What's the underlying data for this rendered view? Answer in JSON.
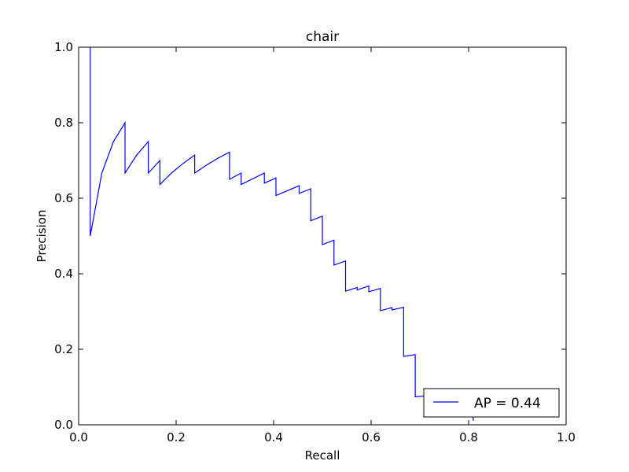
{
  "chart_data": {
    "type": "line",
    "title": "chair",
    "xlabel": "Recall",
    "ylabel": "Precision",
    "xlim": [
      0,
      1
    ],
    "ylim": [
      0,
      1
    ],
    "x_ticks": [
      0.0,
      0.2,
      0.4,
      0.6,
      0.8,
      1.0
    ],
    "y_ticks": [
      0.0,
      0.2,
      0.4,
      0.6,
      0.8,
      1.0
    ],
    "x_tick_labels": [
      "0.0",
      "0.2",
      "0.4",
      "0.6",
      "0.8",
      "1.0"
    ],
    "y_tick_labels": [
      "0.0",
      "0.2",
      "0.4",
      "0.6",
      "0.8",
      "1.0"
    ],
    "grid": false,
    "legend_position": "lower-right",
    "series": [
      {
        "name": "AP = 0.44",
        "color": "#0000ff",
        "points": [
          [
            0.0238,
            1.0
          ],
          [
            0.0238,
            0.5
          ],
          [
            0.0476,
            0.6667
          ],
          [
            0.0714,
            0.75
          ],
          [
            0.0952,
            0.8
          ],
          [
            0.0952,
            0.6667
          ],
          [
            0.119,
            0.7143
          ],
          [
            0.1429,
            0.75
          ],
          [
            0.1429,
            0.6667
          ],
          [
            0.1667,
            0.7
          ],
          [
            0.1667,
            0.6364
          ],
          [
            0.1905,
            0.6667
          ],
          [
            0.2143,
            0.6923
          ],
          [
            0.2381,
            0.7143
          ],
          [
            0.2381,
            0.6667
          ],
          [
            0.2619,
            0.6875
          ],
          [
            0.2857,
            0.7059
          ],
          [
            0.3095,
            0.7222
          ],
          [
            0.3095,
            0.65
          ],
          [
            0.3333,
            0.6667
          ],
          [
            0.3333,
            0.6364
          ],
          [
            0.381,
            0.6667
          ],
          [
            0.381,
            0.64
          ],
          [
            0.4048,
            0.6538
          ],
          [
            0.4048,
            0.6071
          ],
          [
            0.4524,
            0.6333
          ],
          [
            0.4524,
            0.6129
          ],
          [
            0.4762,
            0.625
          ],
          [
            0.4762,
            0.5405
          ],
          [
            0.5,
            0.5526
          ],
          [
            0.5,
            0.4773
          ],
          [
            0.5238,
            0.4889
          ],
          [
            0.5238,
            0.4231
          ],
          [
            0.5476,
            0.434
          ],
          [
            0.5476,
            0.3538
          ],
          [
            0.5714,
            0.3636
          ],
          [
            0.5714,
            0.3571
          ],
          [
            0.5952,
            0.3676
          ],
          [
            0.5952,
            0.3521
          ],
          [
            0.619,
            0.3611
          ],
          [
            0.619,
            0.3023
          ],
          [
            0.6429,
            0.3103
          ],
          [
            0.6429,
            0.3043
          ],
          [
            0.6667,
            0.3111
          ],
          [
            0.6667,
            0.1812
          ],
          [
            0.6905,
            0.1859
          ],
          [
            0.6905,
            0.0744
          ],
          [
            0.7143,
            0.0769
          ],
          [
            0.7143,
            0.0722
          ],
          [
            0.7381,
            0.0745
          ],
          [
            0.7381,
            0.0689
          ],
          [
            0.7619,
            0.0711
          ],
          [
            0.7619,
            0.064
          ],
          [
            0.7857,
            0.066
          ],
          [
            0.7857,
            0.0533
          ],
          [
            0.8095,
            0.0548
          ],
          [
            0.8095,
            0.0107
          ]
        ]
      }
    ]
  }
}
